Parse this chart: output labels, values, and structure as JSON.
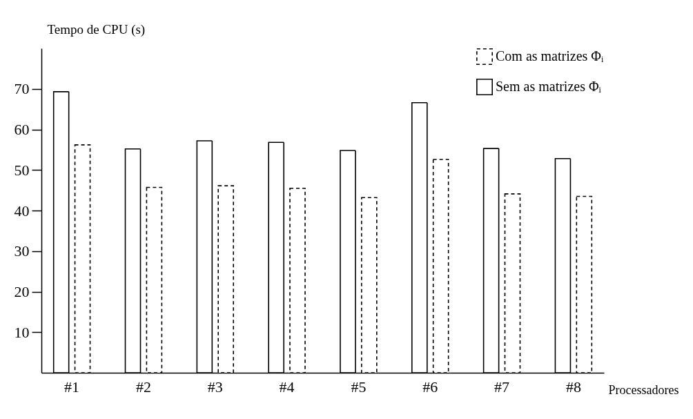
{
  "chart_data": {
    "type": "bar",
    "xlabel": "Processadores",
    "ylabel": "Tempo de CPU (s)",
    "categories": [
      "#1",
      "#2",
      "#3",
      "#4",
      "#5",
      "#6",
      "#7",
      "#8"
    ],
    "series": [
      {
        "name": "Sem as matrizes Φᵢ",
        "color": "#000000",
        "line_style": "solid",
        "values": [
          69.3,
          55.2,
          57.2,
          56.8,
          54.8,
          66.6,
          55.3,
          52.8
        ]
      },
      {
        "name": "Com as matrizes Φᵢ",
        "color": "#000000",
        "line_style": "dashed",
        "values": [
          56.2,
          45.7,
          46.1,
          45.5,
          43.2,
          52.6,
          44.1,
          43.5
        ]
      }
    ],
    "ylim": [
      0,
      80
    ],
    "yticks": [
      10,
      20,
      30,
      40,
      50,
      60,
      70
    ],
    "grid": false,
    "legend": "top right"
  }
}
